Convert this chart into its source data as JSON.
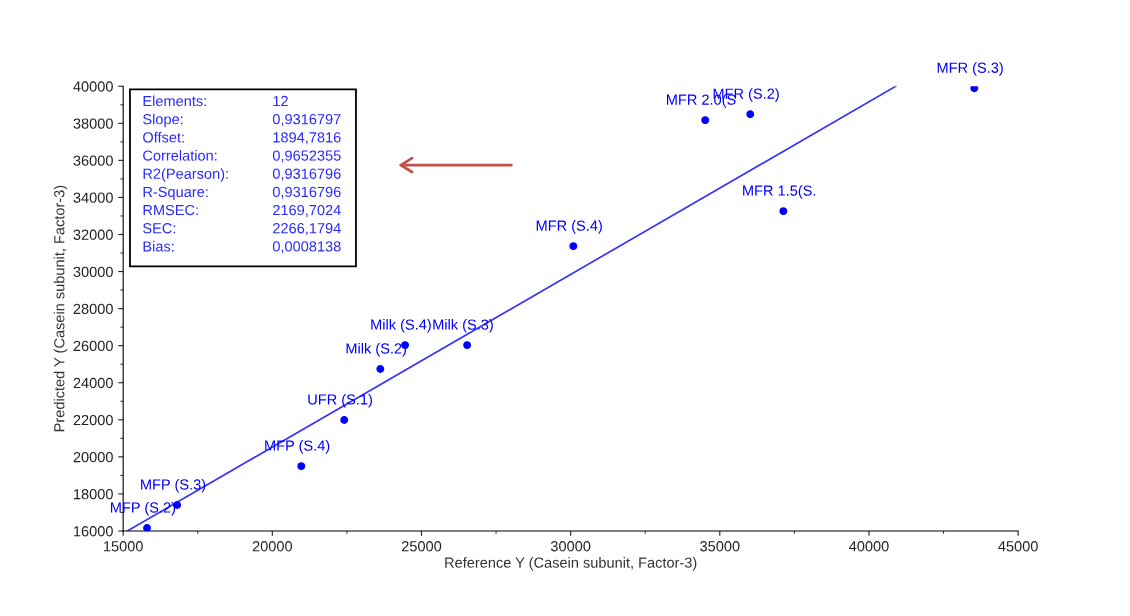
{
  "chart_data": {
    "type": "scatter",
    "xlabel": "Reference Y (Casein subunit, Factor-3)",
    "ylabel": "Predicted Y (Casein subunit, Factor-3)",
    "xlim": [
      15000,
      45000
    ],
    "xticks": [
      15000,
      20000,
      25000,
      30000,
      35000,
      40000,
      45000
    ],
    "ylim": [
      16000,
      40000
    ],
    "yticks": [
      16000,
      18000,
      20000,
      22000,
      24000,
      26000,
      28000,
      30000,
      32000,
      34000,
      36000,
      38000,
      40000
    ],
    "grid": false,
    "legend": false,
    "series": [
      {
        "marker": "circle",
        "color": "#0000ff",
        "x": [
          15800,
          16810,
          20970,
          22410,
          23620,
          24450,
          26530,
          30090,
          34510,
          36020,
          37130,
          43530
        ],
        "values": [
          16160,
          17400,
          19500,
          21990,
          24740,
          26030,
          26030,
          31370,
          38170,
          38490,
          33260,
          39890
        ],
        "value_labels": [
          "MFP (S.2)",
          "MFP (S.3)",
          "MFP (S.4)",
          "UFR (S.1)",
          "Milk (S.2)",
          "Milk (S.4)",
          "Milk (S.3)",
          "MFR (S.4)",
          "MFR 2.0(S",
          "MFR (S.2)",
          "MFR 1.5(S.",
          "MFR (S.3)"
        ]
      },
      {
        "type": "line",
        "color": "#3333ff",
        "x": [
          15140,
          40900
        ],
        "values": [
          16000,
          40000
        ]
      }
    ],
    "annotations": [
      "Elements: 12",
      "Slope: 0,9316797",
      "Offset: 1894,7816",
      "Correlation: 0,9652355",
      "R2(Pearson): 0,9316796",
      "R-Square: 0,9316796",
      "RMSEC: 2169,7024",
      "SEC: 2266,1794",
      "Bias: 0,0008138"
    ]
  }
}
